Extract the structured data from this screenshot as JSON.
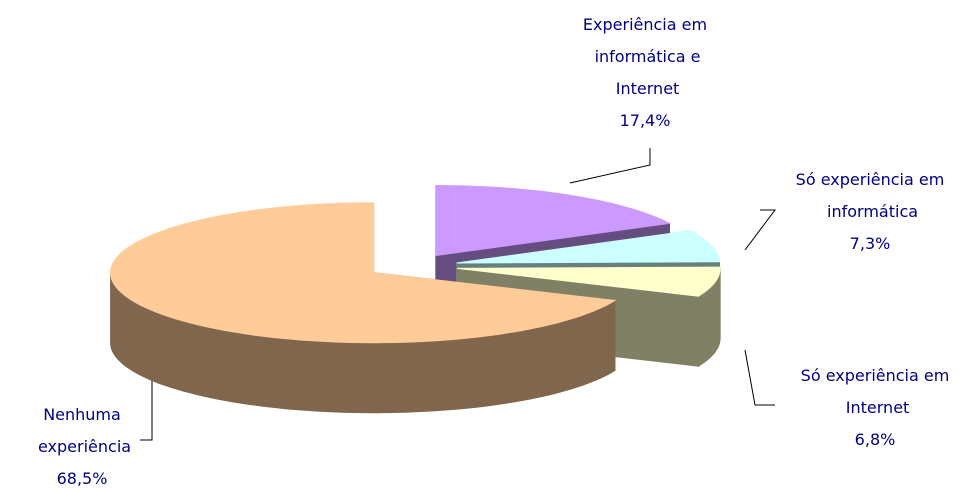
{
  "chart_data": {
    "type": "pie",
    "categories": [
      "Experiência em informática e Internet",
      "Só experiência em informática",
      "Só experiência em Internet",
      "Nenhuma experiência"
    ],
    "values": [
      17.4,
      7.3,
      6.8,
      68.5
    ],
    "value_labels": [
      "17,4%",
      "7,3%",
      "6,8%",
      "68,5%"
    ],
    "colors": [
      "#cc99ff",
      "#ccffff",
      "#ffffcc",
      "#ffcc99"
    ]
  }
}
